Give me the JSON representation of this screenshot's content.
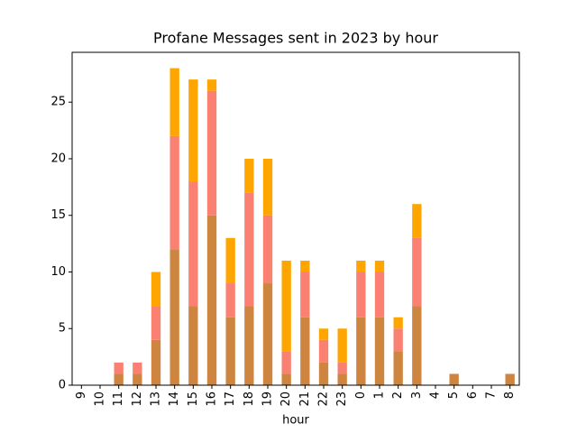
{
  "chart_data": {
    "type": "stacked_bar",
    "title": "Profane Messages sent in 2023 by hour",
    "x_label": "hour",
    "categories": [
      "9",
      "10",
      "11",
      "12",
      "13",
      "14",
      "15",
      "16",
      "17",
      "18",
      "19",
      "20",
      "21",
      "22",
      "23",
      "0",
      "1",
      "2",
      "3",
      "4",
      "5",
      "6",
      "7",
      "8"
    ],
    "series": [
      {
        "color": "#cd853f",
        "values": [
          0,
          0,
          1,
          1,
          4,
          12,
          7,
          15,
          6,
          7,
          9,
          1,
          6,
          2,
          1,
          6,
          6,
          3,
          7,
          0,
          1,
          0,
          0,
          1
        ]
      },
      {
        "color": "#fa8072",
        "values": [
          0,
          0,
          1,
          1,
          3,
          10,
          11,
          11,
          3,
          10,
          6,
          2,
          4,
          2,
          1,
          4,
          4,
          2,
          6,
          0,
          0,
          0,
          0,
          0
        ]
      },
      {
        "color": "#ffa500",
        "values": [
          0,
          0,
          0,
          0,
          3,
          6,
          9,
          1,
          4,
          3,
          5,
          8,
          1,
          1,
          3,
          1,
          1,
          1,
          3,
          0,
          0,
          0,
          0,
          0
        ]
      }
    ],
    "ylim": [
      0,
      29.4
    ],
    "yticks": [
      0,
      5,
      10,
      15,
      20,
      25
    ]
  }
}
